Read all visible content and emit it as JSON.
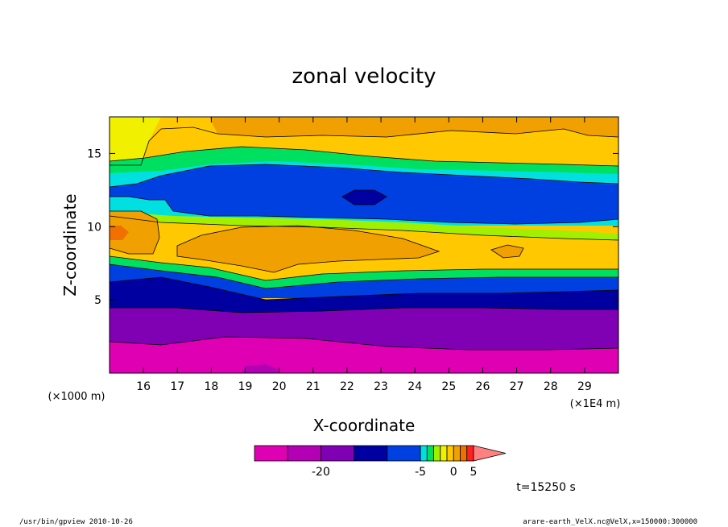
{
  "chart_data": {
    "type": "heatmap",
    "title": "zonal velocity",
    "xlabel": "X-coordinate",
    "ylabel": "Z-coordinate",
    "x_unit_note": "(×1E4 m)",
    "y_unit_note": "(×1000 m)",
    "xlim": [
      15.0,
      30.0
    ],
    "ylim": [
      0.0,
      17.5
    ],
    "x_ticks": [
      "16",
      "17",
      "18",
      "19",
      "20",
      "21",
      "22",
      "23",
      "24",
      "25",
      "26",
      "27",
      "28",
      "29"
    ],
    "y_ticks": [
      "5",
      "10",
      "15"
    ],
    "levels": [
      -30,
      -25,
      -20,
      -15,
      -10,
      -5,
      -4,
      -3,
      -2,
      -1,
      0,
      1,
      2,
      5,
      10,
      15,
      20
    ],
    "colorbar": {
      "colors": [
        "#e000b4",
        "#b400b4",
        "#8000b4",
        "#0000a0",
        "#0040e0",
        "#00e0e0",
        "#00e060",
        "#a0f000",
        "#f0f000",
        "#ffc800",
        "#f0a000",
        "#f07000",
        "#ff2020",
        "#ff8080"
      ],
      "tick_labels": [
        "-20",
        "-5",
        "0",
        "5"
      ]
    },
    "bands": [
      {
        "name": "bottom",
        "z_bottom": 0.0,
        "z_top": 1.9,
        "value": -22,
        "color": "#e000b4"
      },
      {
        "name": "lower",
        "z_bottom": 1.9,
        "z_top": 4.5,
        "value": -16,
        "color": "#8000b4"
      },
      {
        "name": "dark-blue",
        "z_bottom": 4.5,
        "z_top": 6.1,
        "value": -8,
        "color": "#0000a0"
      },
      {
        "name": "blue-lower",
        "z_bottom": 6.1,
        "z_top": 7.0,
        "value": -5,
        "color": "#0040e0"
      },
      {
        "name": "green-transition",
        "z_bottom": 7.0,
        "z_top": 8.0,
        "value": 0,
        "color": "#a0f000"
      },
      {
        "name": "orange-jet",
        "z_bottom": 8.0,
        "z_top": 10.4,
        "value": 6,
        "color": "#f0a000"
      },
      {
        "name": "blue-upper",
        "z_bottom": 11.0,
        "z_top": 13.6,
        "value": -6,
        "color": "#0040e0"
      },
      {
        "name": "orange-top",
        "z_bottom": 16.3,
        "z_top": 17.5,
        "value": 6,
        "color": "#f0a000"
      }
    ]
  },
  "time_label": "t=15250 s",
  "footer_left": "/usr/bin/gpview  2010-10-26",
  "footer_right": "arare-earth_VelX.nc@VelX,x=150000:300000"
}
